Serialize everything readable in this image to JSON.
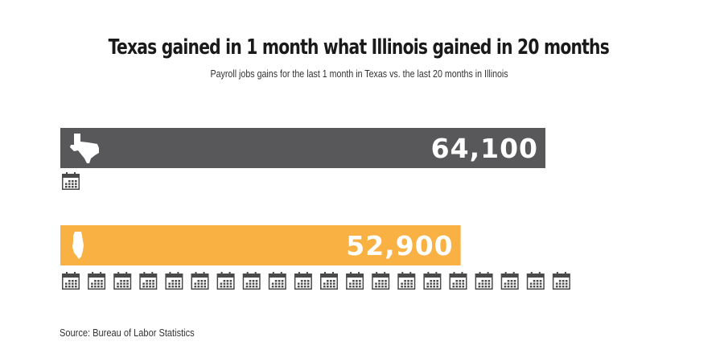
{
  "title": "Texas gained in 1 month what Illinois gained in 20 months",
  "subtitle": "Payroll jobs gains for the last 1 month in Texas vs. the last 20 months in Illinois",
  "source": "Source: Bureau of Labor Statistics",
  "colors": {
    "texas": "#58585a",
    "illinois": "#f9b143",
    "calendar": "#4a4a4a"
  },
  "chart_data": {
    "type": "bar",
    "orientation": "horizontal",
    "categories": [
      "Texas",
      "Illinois"
    ],
    "values": [
      64100,
      52900
    ],
    "value_labels": [
      "64,100",
      "52,900"
    ],
    "months": [
      1,
      20
    ],
    "icons": [
      "texas-state-icon",
      "illinois-state-icon",
      "calendar-icon"
    ],
    "legend": "none",
    "grid": false
  }
}
